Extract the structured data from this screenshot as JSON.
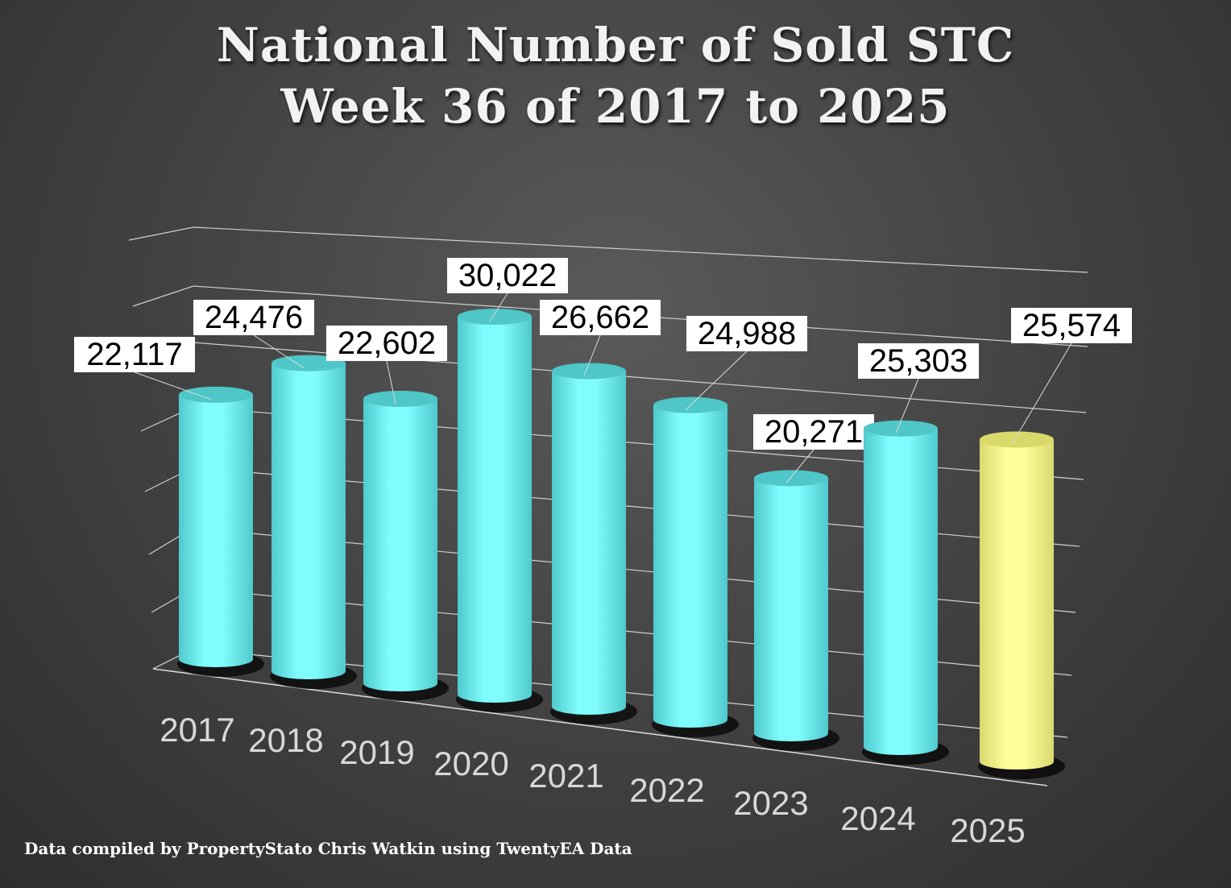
{
  "chart_data": {
    "type": "bar",
    "title": "National Number of  Sold STC",
    "subtitle": "Week 36 of 2017 to 2025",
    "categories": [
      "2017",
      "2018",
      "2019",
      "2020",
      "2021",
      "2022",
      "2023",
      "2024",
      "2025"
    ],
    "values": [
      22117,
      24476,
      22602,
      30022,
      26662,
      24988,
      20271,
      25303,
      25574
    ],
    "value_labels": [
      "22,117",
      "24,476",
      "22,602",
      "30,022",
      "26,662",
      "24,988",
      "20,271",
      "25,303",
      "25,574"
    ],
    "colors": {
      "default": "#72f6f8",
      "highlight": "#fdfd8a"
    },
    "highlight_category": "2025",
    "xlabel": "",
    "ylabel": "",
    "grid": true,
    "legend": "none"
  },
  "footer": "Data compiled by PropertyStato Chris Watkin using TwentyEA Data"
}
